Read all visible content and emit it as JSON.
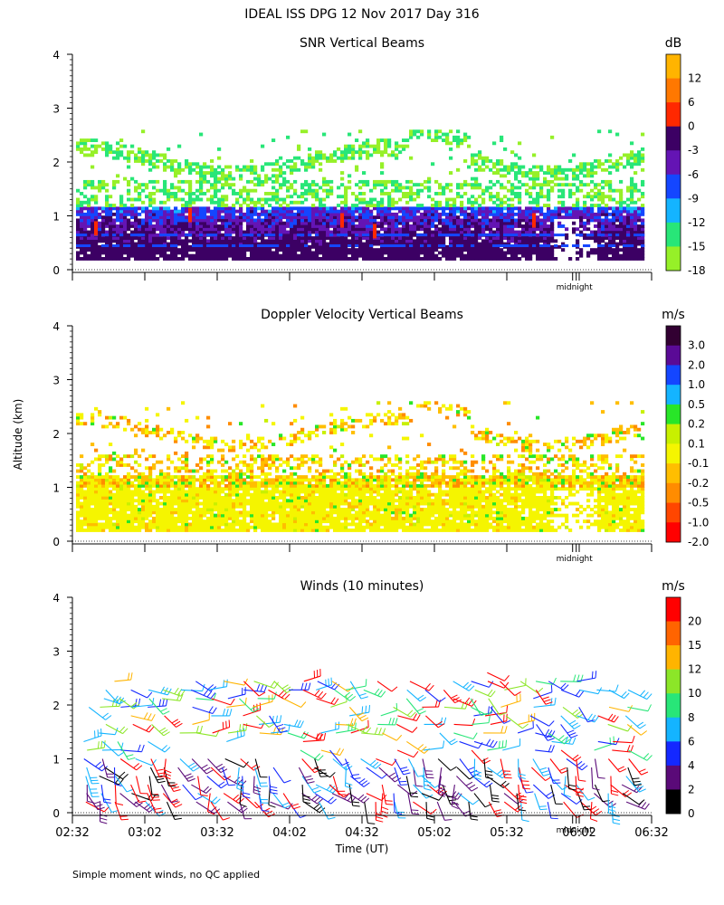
{
  "figure": {
    "title": "IDEAL ISS DPG  12 Nov 2017 Day 316",
    "y_axis_label": "Altitude (km)",
    "x_axis_label": "Time (UT)",
    "footnote": "Simple moment winds, no QC applied",
    "midnight_label": "midnight",
    "time_ticks": [
      "02:32",
      "03:02",
      "03:32",
      "04:02",
      "04:32",
      "05:02",
      "05:32",
      "06:02",
      "06:32"
    ]
  },
  "chart_data": [
    {
      "type": "heatmap",
      "title": "SNR Vertical Beams",
      "xlabel": "",
      "ylabel": "Altitude (km)",
      "xlim_hours": [
        2.533,
        6.533
      ],
      "ylim": [
        0,
        4
      ],
      "yticks": [
        0,
        1,
        2,
        3,
        4
      ],
      "colorbar": {
        "unit": "dB",
        "labels": [
          "12",
          "6",
          "0",
          "-3",
          "-6",
          "-9",
          "-12",
          "-15",
          "-18"
        ],
        "colors": [
          "#ffb400",
          "#ff7800",
          "#ff2800",
          "#3c0064",
          "#6414b4",
          "#1446ff",
          "#14b4ff",
          "#28e678",
          "#96f028"
        ]
      }
    },
    {
      "type": "heatmap",
      "title": "Doppler Velocity Vertical Beams",
      "xlabel": "",
      "ylabel": "Altitude (km)",
      "xlim_hours": [
        2.533,
        6.533
      ],
      "ylim": [
        0,
        4
      ],
      "yticks": [
        0,
        1,
        2,
        3,
        4
      ],
      "colorbar": {
        "unit": "m/s",
        "labels": [
          "3.0",
          "2.0",
          "1.0",
          "0.5",
          "0.2",
          "0.1",
          "-0.1",
          "-0.2",
          "-0.5",
          "-1.0",
          "-2.0"
        ],
        "colors": [
          "#320032",
          "#5a0a96",
          "#1446ff",
          "#14b4ff",
          "#28e628",
          "#c8f000",
          "#f5f500",
          "#ffbe00",
          "#ff8c00",
          "#ff4600",
          "#ff0000"
        ]
      }
    },
    {
      "type": "scatter",
      "title": "Winds (10 minutes)",
      "xlabel": "Time (UT)",
      "ylabel": "Altitude (km)",
      "xlim_hours": [
        2.533,
        6.533
      ],
      "ylim": [
        0,
        4
      ],
      "yticks": [
        0,
        1,
        2,
        3,
        4
      ],
      "colorbar": {
        "unit": "m/s",
        "labels": [
          "20",
          "15",
          "12",
          "10",
          "8",
          "6",
          "4",
          "2",
          "0"
        ],
        "colors": [
          "#ff0000",
          "#ff6400",
          "#ffb400",
          "#8ce628",
          "#28e678",
          "#14b4ff",
          "#1428ff",
          "#5a0a78",
          "#000000"
        ]
      }
    }
  ]
}
